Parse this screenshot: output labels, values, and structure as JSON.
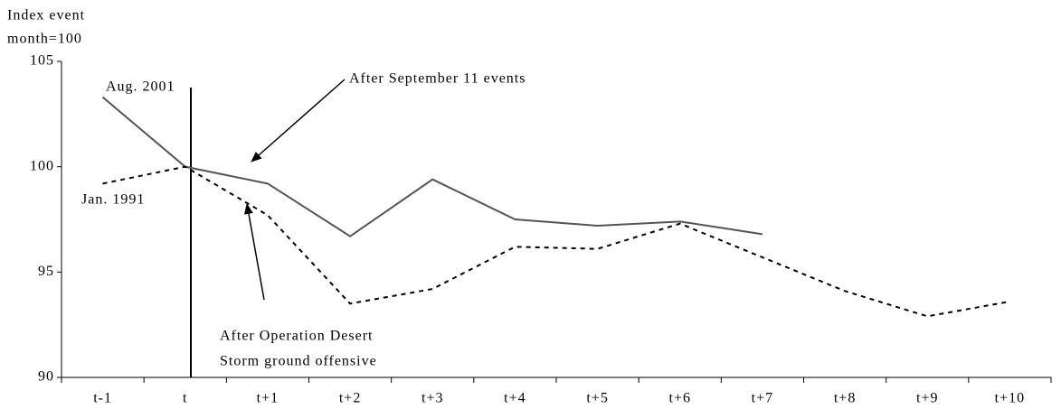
{
  "chart_data": {
    "type": "line",
    "y_label": [
      "Index event",
      "month=100"
    ],
    "categories": [
      "t-1",
      "t",
      "t+1",
      "t+2",
      "t+3",
      "t+4",
      "t+5",
      "t+6",
      "t+7",
      "t+8",
      "t+9",
      "t+10"
    ],
    "series": [
      {
        "name": "Aug. 2001",
        "color": "#555555",
        "dash": "solid",
        "values": [
          103.3,
          100,
          99.2,
          96.7,
          99.4,
          97.5,
          97.2,
          97.4,
          96.8,
          null,
          null,
          null
        ]
      },
      {
        "name": "Jan. 1991",
        "color": "#000000",
        "dash": "dashed",
        "values": [
          99.2,
          100,
          97.7,
          93.5,
          94.2,
          96.2,
          96.1,
          97.3,
          95.7,
          94.1,
          92.9,
          93.6
        ]
      }
    ],
    "ylim": [
      90,
      105
    ],
    "yticks": [
      90,
      95,
      100,
      105
    ],
    "annotations": [
      "After September 11 events",
      "After Operation Desert",
      "Storm ground offensive"
    ]
  }
}
